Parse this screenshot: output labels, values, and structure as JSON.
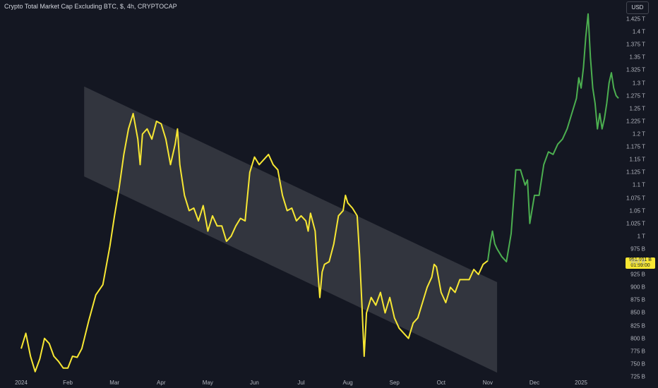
{
  "header": {
    "title": "Crypto Total Market Cap Excluding BTC, $, 4h, CRYPTOCAP",
    "currency_button": "USD"
  },
  "price_label": {
    "value": "951.091 B",
    "countdown": "01:59:00"
  },
  "colors": {
    "background": "#141722",
    "line_main": "#f7e733",
    "line_recent": "#4caf50",
    "channel_fill": "#ffffff"
  },
  "chart_data": {
    "type": "line",
    "title": "Crypto Total Market Cap Excluding BTC, $, 4h, CRYPTOCAP",
    "ylabel": "USD",
    "x_labels": [
      "2024",
      "Feb",
      "Mar",
      "Apr",
      "May",
      "Jun",
      "Jul",
      "Aug",
      "Sep",
      "Oct",
      "Nov",
      "Dec",
      "2025"
    ],
    "y_tick_labels": [
      "1.425 T",
      "1.4 T",
      "1.375 T",
      "1.35 T",
      "1.325 T",
      "1.3 T",
      "1.275 T",
      "1.25 T",
      "1.225 T",
      "1.2 T",
      "1.175 T",
      "1.15 T",
      "1.125 T",
      "1.1 T",
      "1.075 T",
      "1.05 T",
      "1.025 T",
      "1 T",
      "975 B",
      "950 B",
      "925 B",
      "900 B",
      "875 B",
      "850 B",
      "825 B",
      "800 B",
      "775 B",
      "750 B",
      "725 B"
    ],
    "y_tick_values": [
      1425,
      1400,
      1375,
      1350,
      1325,
      1300,
      1275,
      1250,
      1225,
      1200,
      1175,
      1150,
      1125,
      1100,
      1075,
      1050,
      1025,
      1000,
      975,
      950,
      925,
      900,
      875,
      850,
      825,
      800,
      775,
      750,
      725
    ],
    "y_unit": "billion USD",
    "ylim": [
      718,
      1445
    ],
    "x_unit": "months since 2024-01-01",
    "xlim": [
      -0.2,
      13.15
    ],
    "series": [
      {
        "segment": "yellow",
        "points": [
          [
            0.0,
            780
          ],
          [
            0.1,
            810
          ],
          [
            0.2,
            765
          ],
          [
            0.3,
            735
          ],
          [
            0.4,
            760
          ],
          [
            0.5,
            800
          ],
          [
            0.6,
            790
          ],
          [
            0.7,
            765
          ],
          [
            0.8,
            755
          ],
          [
            0.9,
            742
          ],
          [
            1.0,
            742
          ],
          [
            1.1,
            765
          ],
          [
            1.2,
            763
          ],
          [
            1.3,
            780
          ],
          [
            1.45,
            835
          ],
          [
            1.6,
            885
          ],
          [
            1.75,
            905
          ],
          [
            1.9,
            980
          ],
          [
            2.0,
            1040
          ],
          [
            2.1,
            1095
          ],
          [
            2.2,
            1160
          ],
          [
            2.3,
            1210
          ],
          [
            2.4,
            1240
          ],
          [
            2.5,
            1190
          ],
          [
            2.55,
            1140
          ],
          [
            2.6,
            1200
          ],
          [
            2.7,
            1210
          ],
          [
            2.8,
            1190
          ],
          [
            2.9,
            1225
          ],
          [
            3.0,
            1220
          ],
          [
            3.1,
            1190
          ],
          [
            3.2,
            1140
          ],
          [
            3.3,
            1180
          ],
          [
            3.35,
            1210
          ],
          [
            3.4,
            1140
          ],
          [
            3.5,
            1080
          ],
          [
            3.6,
            1050
          ],
          [
            3.7,
            1055
          ],
          [
            3.8,
            1030
          ],
          [
            3.9,
            1060
          ],
          [
            4.0,
            1010
          ],
          [
            4.1,
            1040
          ],
          [
            4.2,
            1020
          ],
          [
            4.3,
            1020
          ],
          [
            4.4,
            990
          ],
          [
            4.5,
            1000
          ],
          [
            4.6,
            1020
          ],
          [
            4.7,
            1035
          ],
          [
            4.8,
            1030
          ],
          [
            4.9,
            1125
          ],
          [
            5.0,
            1155
          ],
          [
            5.1,
            1140
          ],
          [
            5.2,
            1150
          ],
          [
            5.3,
            1160
          ],
          [
            5.4,
            1140
          ],
          [
            5.5,
            1130
          ],
          [
            5.6,
            1080
          ],
          [
            5.7,
            1050
          ],
          [
            5.8,
            1055
          ],
          [
            5.9,
            1030
          ],
          [
            6.0,
            1040
          ],
          [
            6.1,
            1030
          ],
          [
            6.15,
            1010
          ],
          [
            6.2,
            1045
          ],
          [
            6.3,
            1010
          ],
          [
            6.35,
            940
          ],
          [
            6.4,
            880
          ],
          [
            6.45,
            930
          ],
          [
            6.5,
            945
          ],
          [
            6.6,
            950
          ],
          [
            6.7,
            985
          ],
          [
            6.8,
            1040
          ],
          [
            6.9,
            1050
          ],
          [
            6.95,
            1080
          ],
          [
            7.0,
            1065
          ],
          [
            7.1,
            1055
          ],
          [
            7.2,
            1040
          ],
          [
            7.25,
            965
          ],
          [
            7.3,
            870
          ],
          [
            7.35,
            765
          ],
          [
            7.4,
            850
          ],
          [
            7.5,
            880
          ],
          [
            7.6,
            865
          ],
          [
            7.7,
            890
          ],
          [
            7.8,
            850
          ],
          [
            7.9,
            880
          ],
          [
            8.0,
            840
          ],
          [
            8.1,
            820
          ],
          [
            8.2,
            810
          ],
          [
            8.3,
            800
          ],
          [
            8.4,
            830
          ],
          [
            8.5,
            840
          ],
          [
            8.6,
            870
          ],
          [
            8.7,
            900
          ],
          [
            8.8,
            920
          ],
          [
            8.85,
            945
          ],
          [
            8.9,
            940
          ],
          [
            9.0,
            890
          ],
          [
            9.1,
            870
          ],
          [
            9.2,
            900
          ],
          [
            9.3,
            890
          ],
          [
            9.4,
            915
          ],
          [
            9.5,
            915
          ],
          [
            9.6,
            915
          ],
          [
            9.7,
            935
          ],
          [
            9.8,
            925
          ],
          [
            9.9,
            945
          ],
          [
            10.0,
            952
          ]
        ]
      },
      {
        "segment": "green",
        "points": [
          [
            10.0,
            952
          ],
          [
            10.05,
            985
          ],
          [
            10.1,
            1010
          ],
          [
            10.15,
            985
          ],
          [
            10.2,
            975
          ],
          [
            10.3,
            960
          ],
          [
            10.4,
            950
          ],
          [
            10.5,
            1005
          ],
          [
            10.6,
            1130
          ],
          [
            10.7,
            1130
          ],
          [
            10.8,
            1100
          ],
          [
            10.85,
            1110
          ],
          [
            10.9,
            1025
          ],
          [
            11.0,
            1080
          ],
          [
            11.1,
            1080
          ],
          [
            11.2,
            1140
          ],
          [
            11.3,
            1165
          ],
          [
            11.4,
            1160
          ],
          [
            11.5,
            1180
          ],
          [
            11.6,
            1190
          ],
          [
            11.7,
            1210
          ],
          [
            11.8,
            1240
          ],
          [
            11.9,
            1270
          ],
          [
            11.95,
            1310
          ],
          [
            12.0,
            1290
          ],
          [
            12.05,
            1330
          ],
          [
            12.1,
            1390
          ],
          [
            12.15,
            1435
          ],
          [
            12.2,
            1350
          ],
          [
            12.25,
            1290
          ],
          [
            12.3,
            1260
          ],
          [
            12.35,
            1210
          ],
          [
            12.4,
            1240
          ],
          [
            12.45,
            1210
          ],
          [
            12.5,
            1230
          ],
          [
            12.55,
            1260
          ],
          [
            12.6,
            1300
          ],
          [
            12.65,
            1320
          ],
          [
            12.7,
            1290
          ],
          [
            12.75,
            1275
          ],
          [
            12.8,
            1270
          ]
        ]
      }
    ],
    "channel": {
      "upper": [
        [
          1.35,
          1293
        ],
        [
          10.2,
          910
        ]
      ],
      "lower": [
        [
          1.35,
          1117
        ],
        [
          10.2,
          733
        ]
      ]
    },
    "grid": false,
    "legend": "none"
  }
}
